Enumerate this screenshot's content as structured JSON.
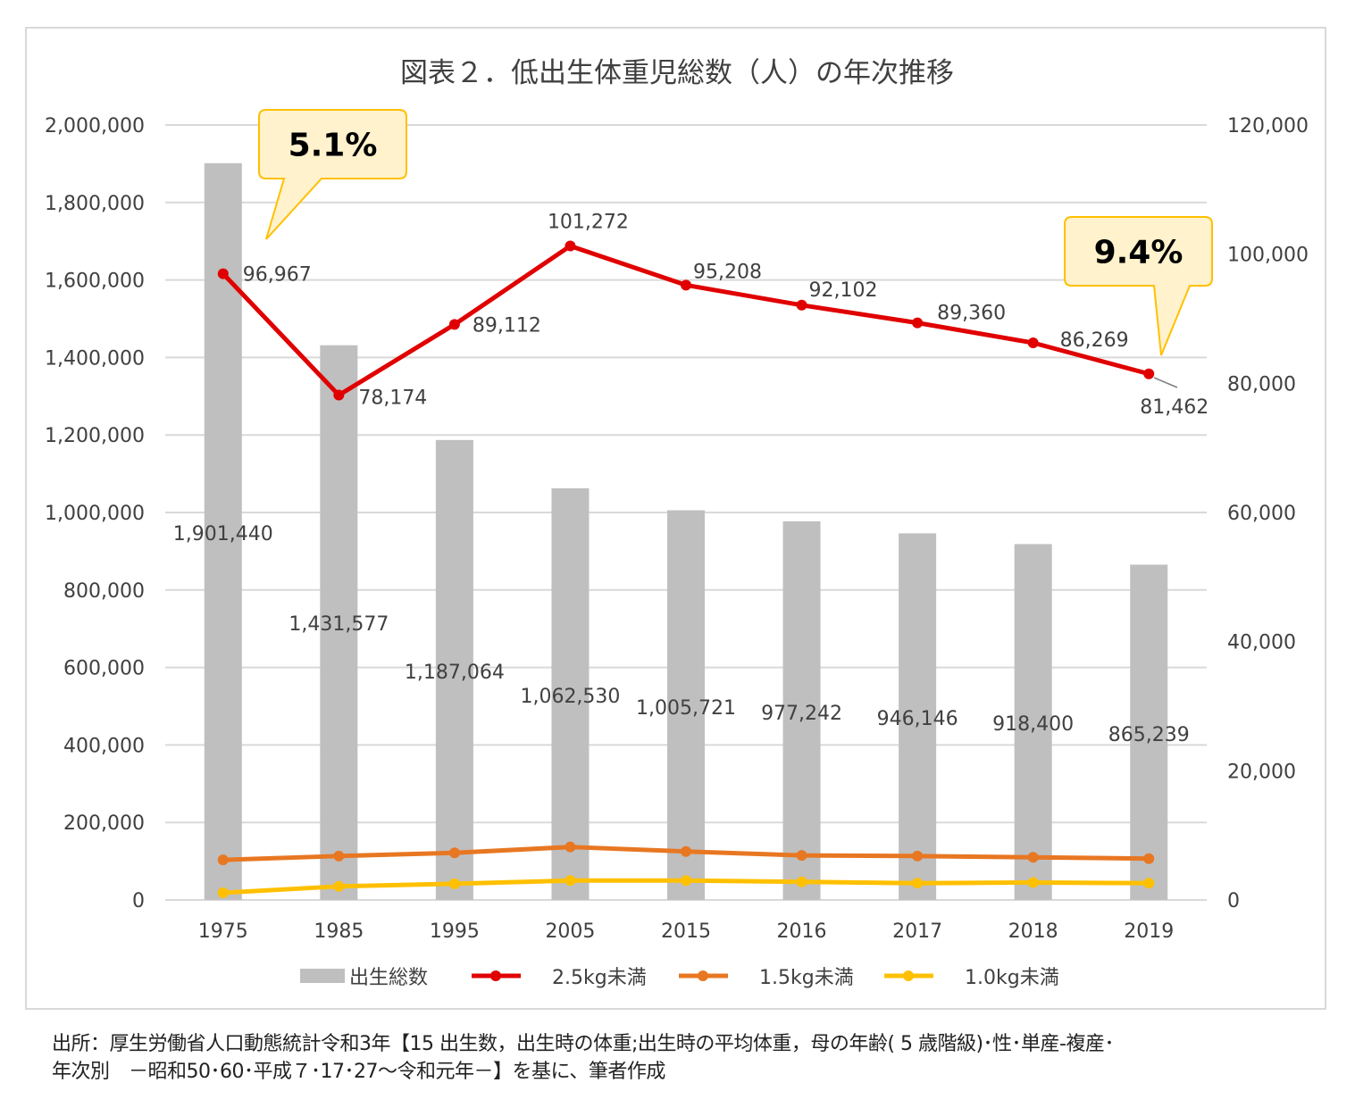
{
  "chart_data": {
    "type": "bar+line",
    "title": "図表２．低出生体重児総数（人）の年次推移",
    "categories": [
      "1975",
      "1985",
      "1995",
      "2005",
      "2015",
      "2016",
      "2017",
      "2018",
      "2019"
    ],
    "left_axis": {
      "ylim": [
        0,
        2000000
      ],
      "ticks": [
        "0",
        "200,000",
        "400,000",
        "600,000",
        "800,000",
        "1,000,000",
        "1,200,000",
        "1,400,000",
        "1,600,000",
        "1,800,000",
        "2,000,000"
      ]
    },
    "right_axis": {
      "ylim": [
        0,
        120000
      ],
      "ticks": [
        "0",
        "20,000",
        "40,000",
        "60,000",
        "80,000",
        "100,000",
        "120,000"
      ]
    },
    "grid": true,
    "legend_position": "bottom",
    "series": [
      {
        "name": "出生総数",
        "type": "bar",
        "axis": "left",
        "color": "#bfbfbf",
        "values": [
          1901440,
          1431577,
          1187064,
          1062530,
          1005721,
          977242,
          946146,
          918400,
          865239
        ],
        "labels": [
          "1,901,440",
          "1,431,577",
          "1,187,064",
          "1,062,530",
          "1,005,721",
          "977,242",
          "946,146",
          "918,400",
          "865,239"
        ]
      },
      {
        "name": "2.5kg未満",
        "type": "line",
        "axis": "right",
        "color": "#e00000",
        "values": [
          96967,
          78174,
          89112,
          101272,
          95208,
          92102,
          89360,
          86269,
          81462
        ],
        "labels": [
          "96,967",
          "78,174",
          "89,112",
          "101,272",
          "95,208",
          "92,102",
          "89,360",
          "86,269",
          "81,462"
        ]
      },
      {
        "name": "1.5kg未満",
        "type": "line",
        "axis": "right",
        "color": "#e87722",
        "values": [
          6200,
          6800,
          7300,
          8200,
          7500,
          6900,
          6800,
          6600,
          6400
        ]
      },
      {
        "name": "1.0kg未満",
        "type": "line",
        "axis": "right",
        "color": "#ffc000",
        "values": [
          1100,
          2100,
          2500,
          3000,
          3000,
          2800,
          2600,
          2700,
          2600
        ]
      }
    ],
    "annotations": [
      {
        "text": "5.1%",
        "category": "1975"
      },
      {
        "text": "9.4%",
        "category": "2019"
      }
    ]
  },
  "source": {
    "line1": "出所：厚生労働省人口動態統計令和3年【15 出生数，出生時の体重;出生時の平均体重，母の年齢( 5 歳階級)･性･単産-複産･",
    "line2": "年次別　－昭和50･60･平成７･17･27～令和元年－】を基に、筆者作成"
  }
}
